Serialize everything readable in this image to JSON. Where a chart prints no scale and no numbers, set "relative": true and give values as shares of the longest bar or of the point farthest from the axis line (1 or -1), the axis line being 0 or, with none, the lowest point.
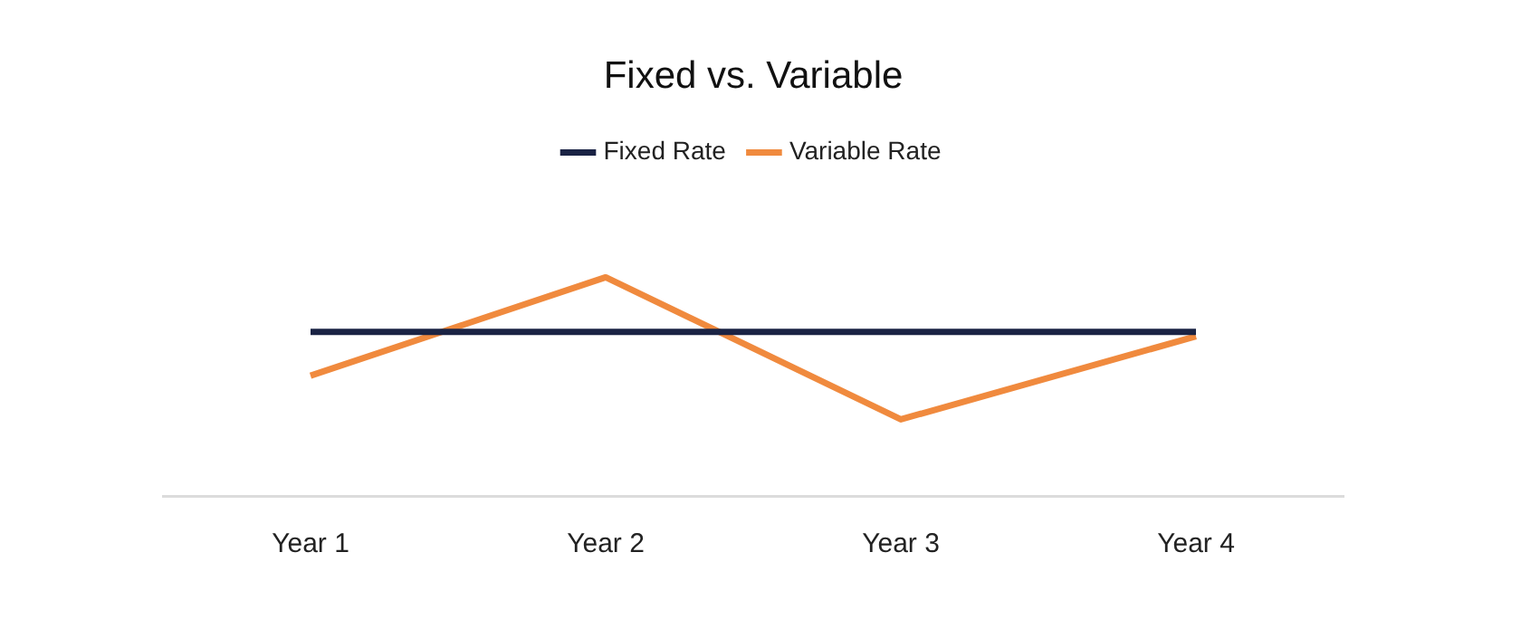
{
  "chart_data": {
    "type": "line",
    "title": "Fixed vs. Variable",
    "relative": true,
    "categories": [
      "Year 1",
      "Year 2",
      "Year 3",
      "Year 4"
    ],
    "series": [
      {
        "name": "Fixed Rate",
        "color": "#1a2344",
        "values": [
          0.75,
          0.75,
          0.75,
          0.75
        ]
      },
      {
        "name": "Variable Rate",
        "color": "#f08a3e",
        "values": [
          0.55,
          1,
          0.35,
          0.73
        ]
      }
    ],
    "legend": "top",
    "marker": "none",
    "line_style": "solid",
    "grid": false
  }
}
